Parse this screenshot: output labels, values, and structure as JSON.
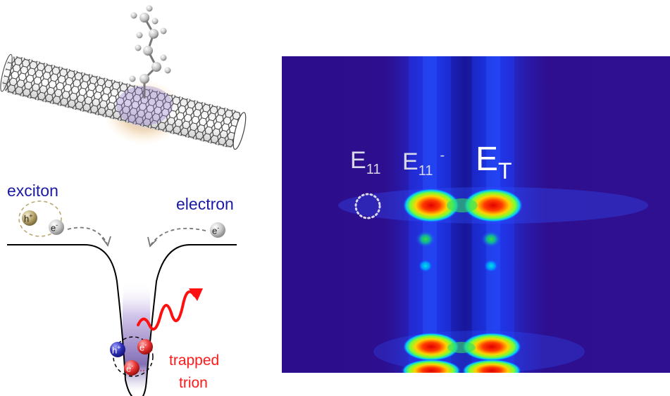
{
  "left_panel": {
    "labels": {
      "exciton": "exciton",
      "electron": "electron",
      "trapped": "trapped",
      "trion": "trion"
    },
    "particles": {
      "hole": "h",
      "hole_charge": "+",
      "electron": "e",
      "electron_charge": "-"
    }
  },
  "right_panel": {
    "map_label_e11": "E",
    "map_label_e11_sub": "11",
    "map_label_e11minus": "E",
    "map_label_e11minus_sub": "11",
    "map_label_e11minus_sup": "-",
    "map_label_et": "E",
    "map_label_et_sub": "T"
  },
  "colors": {
    "exciton_label": "#1a1aa6",
    "electron_label": "#1a1aa6",
    "trapped_trion_label": "#ff1a1a",
    "hole_blue": "#2f2fb8",
    "hole_gold": "#b8a46a",
    "electron_red": "#e63030",
    "electron_gray": "#c8c8c8",
    "photon": "#ff1010",
    "map_background": "#2c0d8a",
    "map_labels": "#ffffff",
    "map_label_dim": "#d8d8e8"
  }
}
